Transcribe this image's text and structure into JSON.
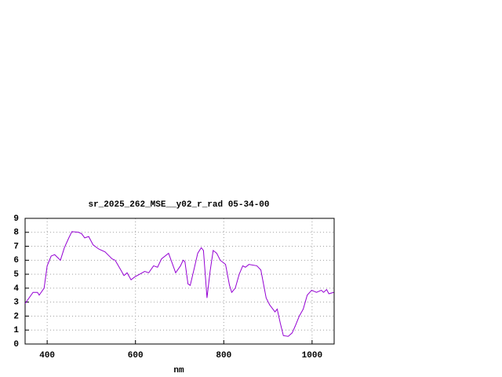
{
  "chart_data": {
    "type": "line",
    "title": "sr_2025_262_MSE__y02_r_rad 05-34-00",
    "x_label": "nm",
    "xlim": [
      350,
      1050
    ],
    "ylim": [
      0,
      9
    ],
    "xticks": [
      400,
      600,
      800,
      1000
    ],
    "yticks": [
      0,
      1,
      2,
      3,
      4,
      5,
      6,
      7,
      8,
      9
    ],
    "grid": true,
    "series": [
      {
        "color": "#9400d3",
        "x": [
          350,
          368,
          378,
          382,
          393,
          400,
          409,
          417,
          430,
          439,
          449,
          456,
          471,
          478,
          485,
          494,
          504,
          517,
          531,
          547,
          554,
          565,
          574,
          581,
          590,
          598,
          621,
          630,
          641,
          650,
          659,
          675,
          691,
          702,
          708,
          712,
          719,
          724,
          733,
          741,
          749,
          754,
          762,
          769,
          776,
          784,
          792,
          804,
          813,
          818,
          826,
          835,
          843,
          849,
          857,
          875,
          884,
          896,
          904,
          916,
          921,
          928,
          935,
          946,
          955,
          962,
          971,
          980,
          989,
          999,
          1010,
          1021,
          1026,
          1033,
          1038,
          1049
        ],
        "values": [
          2.9,
          3.7,
          3.7,
          3.5,
          4.0,
          5.6,
          6.3,
          6.4,
          6.0,
          6.9,
          7.6,
          8.05,
          8.0,
          7.9,
          7.6,
          7.7,
          7.1,
          6.8,
          6.6,
          6.1,
          6.0,
          5.4,
          4.9,
          5.1,
          4.6,
          4.8,
          5.2,
          5.1,
          5.6,
          5.5,
          6.1,
          6.5,
          5.1,
          5.6,
          6.0,
          5.9,
          4.3,
          4.2,
          5.4,
          6.5,
          6.9,
          6.7,
          3.3,
          5.2,
          6.7,
          6.5,
          6.0,
          5.7,
          4.2,
          3.7,
          4.0,
          5.0,
          5.6,
          5.5,
          5.7,
          5.6,
          5.3,
          3.3,
          2.8,
          2.3,
          2.5,
          1.5,
          0.6,
          0.55,
          0.8,
          1.3,
          2.0,
          2.5,
          3.5,
          3.85,
          3.7,
          3.85,
          3.7,
          3.9,
          3.6,
          3.7
        ]
      }
    ]
  }
}
